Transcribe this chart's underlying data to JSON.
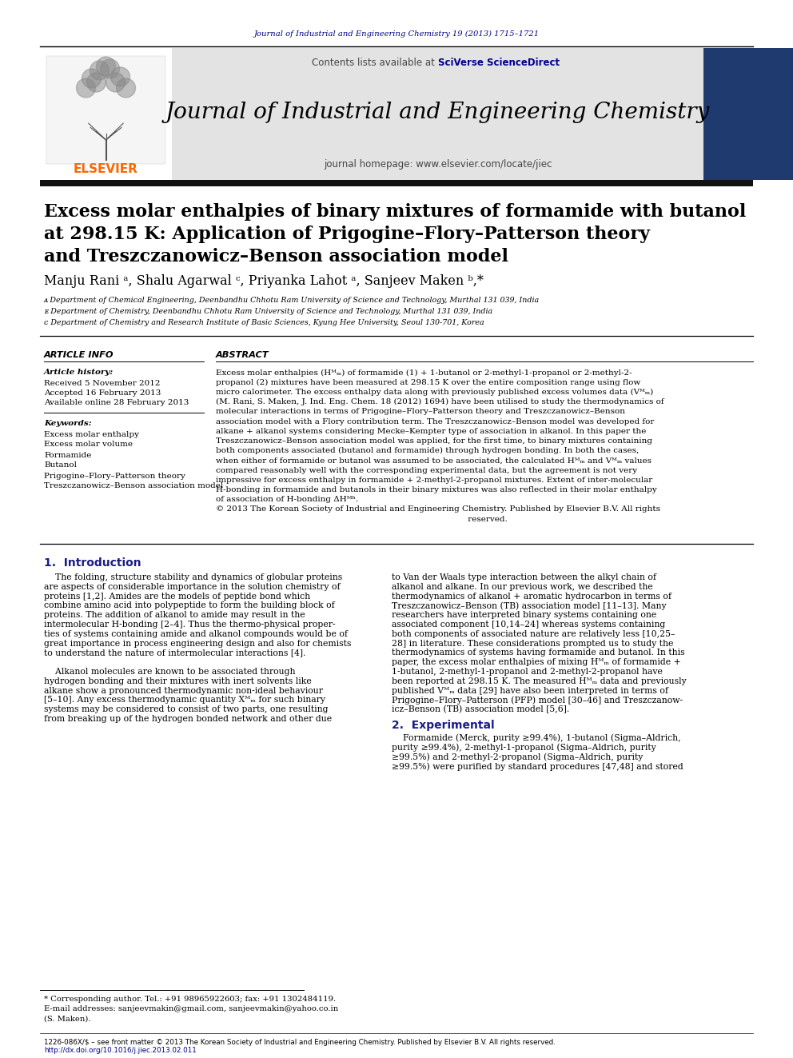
{
  "journal_ref": "Journal of Industrial and Engineering Chemistry 19 (2013) 1715–1721",
  "contents_plain": "Contents lists available at ",
  "contents_link": "SciVerse ScienceDirect",
  "journal_name": "Journal of Industrial and Engineering Chemistry",
  "journal_homepage": "journal homepage: www.elsevier.com/locate/jiec",
  "title_line1": "Excess molar enthalpies of binary mixtures of formamide with butanol",
  "title_line2": "at 298.15 K: Application of Prigogine–Flory–Patterson theory",
  "title_line3": "and Treszczanowicz–Benson association model",
  "authors": "Manju Rani ᵃ, Shalu Agarwal ᶜ, Priyanka Lahot ᵃ, Sanjeev Maken ᵇ,*",
  "affil_a": "ᴀ Department of Chemical Engineering, Deenbandhu Chhotu Ram University of Science and Technology, Murthal 131 039, India",
  "affil_b": "ᴇ Department of Chemistry, Deenbandhu Chhotu Ram University of Science and Technology, Murthal 131 039, India",
  "affil_c": "ᴄ Department of Chemistry and Research Institute of Basic Sciences, Kyung Hee University, Seoul 130-701, Korea",
  "article_info_label": "ARTICLE INFO",
  "article_history_label": "Article history:",
  "received": "Received 5 November 2012",
  "accepted": "Accepted 16 February 2013",
  "available": "Available online 28 February 2013",
  "keywords_label": "Keywords:",
  "keywords": [
    "Excess molar enthalpy",
    "Excess molar volume",
    "Formamide",
    "Butanol",
    "Prigogine–Flory–Patterson theory",
    "Treszczanowicz–Benson association model"
  ],
  "abstract_label": "ABSTRACT",
  "abstract_lines": [
    "Excess molar enthalpies (Hᴹₘ) of formamide (1) + 1-butanol or 2-methyl-1-propanol or 2-methyl-2-",
    "propanol (2) mixtures have been measured at 298.15 K over the entire composition range using flow",
    "micro calorimeter. The excess enthalpy data along with previously published excess volumes data (Vᴹₘ)",
    "(M. Rani, S. Maken, J. Ind. Eng. Chem. 18 (2012) 1694) have been utilised to study the thermodynamics of",
    "molecular interactions in terms of Prigogine–Flory–Patterson theory and Treszczanowicz–Benson",
    "association model with a Flory contribution term. The Treszczanowicz–Benson model was developed for",
    "alkane + alkanol systems considering Mecke–Kempter type of association in alkanol. In this paper the",
    "Treszczanowicz–Benson association model was applied, for the first time, to binary mixtures containing",
    "both components associated (butanol and formamide) through hydrogen bonding. In both the cases,",
    "when either of formamide or butanol was assumed to be associated, the calculated Hᴹₘ and Vᴹₘ values",
    "compared reasonably well with the corresponding experimental data, but the agreement is not very",
    "impressive for excess enthalpy in formamide + 2-methyl-2-propanol mixtures. Extent of inter-molecular",
    "H-bonding in formamide and butanols in their binary mixtures was also reflected in their molar enthalpy",
    "of association of H-bonding ΔHᴹʰ.",
    "© 2013 The Korean Society of Industrial and Engineering Chemistry. Published by Elsevier B.V. All rights",
    "                                                                                                 reserved."
  ],
  "section1_title": "1.  Introduction",
  "intro_col1": [
    "    The folding, structure stability and dynamics of globular proteins",
    "are aspects of considerable importance in the solution chemistry of",
    "proteins [1,2]. Amides are the models of peptide bond which",
    "combine amino acid into polypeptide to form the building block of",
    "proteins. The addition of alkanol to amide may result in the",
    "intermolecular H-bonding [2–4]. Thus the thermo-physical proper-",
    "ties of systems containing amide and alkanol compounds would be of",
    "great importance in process engineering design and also for chemists",
    "to understand the nature of intermolecular interactions [4].",
    "",
    "    Alkanol molecules are known to be associated through",
    "hydrogen bonding and their mixtures with inert solvents like",
    "alkane show a pronounced thermodynamic non-ideal behaviour",
    "[5–10]. Any excess thermodynamic quantity Xᴹₘ for such binary",
    "systems may be considered to consist of two parts, one resulting",
    "from breaking up of the hydrogen bonded network and other due"
  ],
  "intro_col2": [
    "to Van der Waals type interaction between the alkyl chain of",
    "alkanol and alkane. In our previous work, we described the",
    "thermodynamics of alkanol + aromatic hydrocarbon in terms of",
    "Treszczanowicz–Benson (TB) association model [11–13]. Many",
    "researchers have interpreted binary systems containing one",
    "associated component [10,14–24] whereas systems containing",
    "both components of associated nature are relatively less [10,25–",
    "28] in literature. These considerations prompted us to study the",
    "thermodynamics of systems having formamide and butanol. In this",
    "paper, the excess molar enthalpies of mixing Hᴹₘ of formamide +",
    "1-butanol, 2-methyl-1-propanol and 2-methyl-2-propanol have",
    "been reported at 298.15 K. The measured Hᴹₘ data and previously",
    "published Vᴹₘ data [29] have also been interpreted in terms of",
    "Prigogine–Flory–Patterson (PFP) model [30–46] and Treszczanow-",
    "icz–Benson (TB) association model [5,6]."
  ],
  "section2_title": "2.  Experimental",
  "exp_col2": [
    "    Formamide (Merck, purity ≥99.4%), 1-butanol (Sigma–Aldrich,",
    "purity ≥99.4%), 2-methyl-1-propanol (Sigma–Aldrich, purity",
    "≥99.5%) and 2-methyl-2-propanol (Sigma–Aldrich, purity",
    "≥99.5%) were purified by standard procedures [47,48] and stored"
  ],
  "footnote_star": "* Corresponding author. Tel.: +91 98965922603; fax: +91 1302484119.",
  "footnote_email": "E-mail addresses: sanjeevmakin@gmail.com, sanjeevmakin@yahoo.co.in",
  "footnote_name": "(S. Maken).",
  "issn_line": "1226-086X/$ – see front matter © 2013 The Korean Society of Industrial and Engineering Chemistry. Published by Elsevier B.V. All rights reserved.",
  "doi_line": "http://dx.doi.org/10.1016/j.jiec.2013.02.011",
  "journal_ref_color": "#00008B",
  "sciverse_color": "#00008B",
  "elsevier_orange": "#FF6600",
  "section_title_color": "#1a1a8c",
  "sidebar_color": "#1e3a6e",
  "header_bg": "#e3e3e3",
  "link_color": "#00008B"
}
